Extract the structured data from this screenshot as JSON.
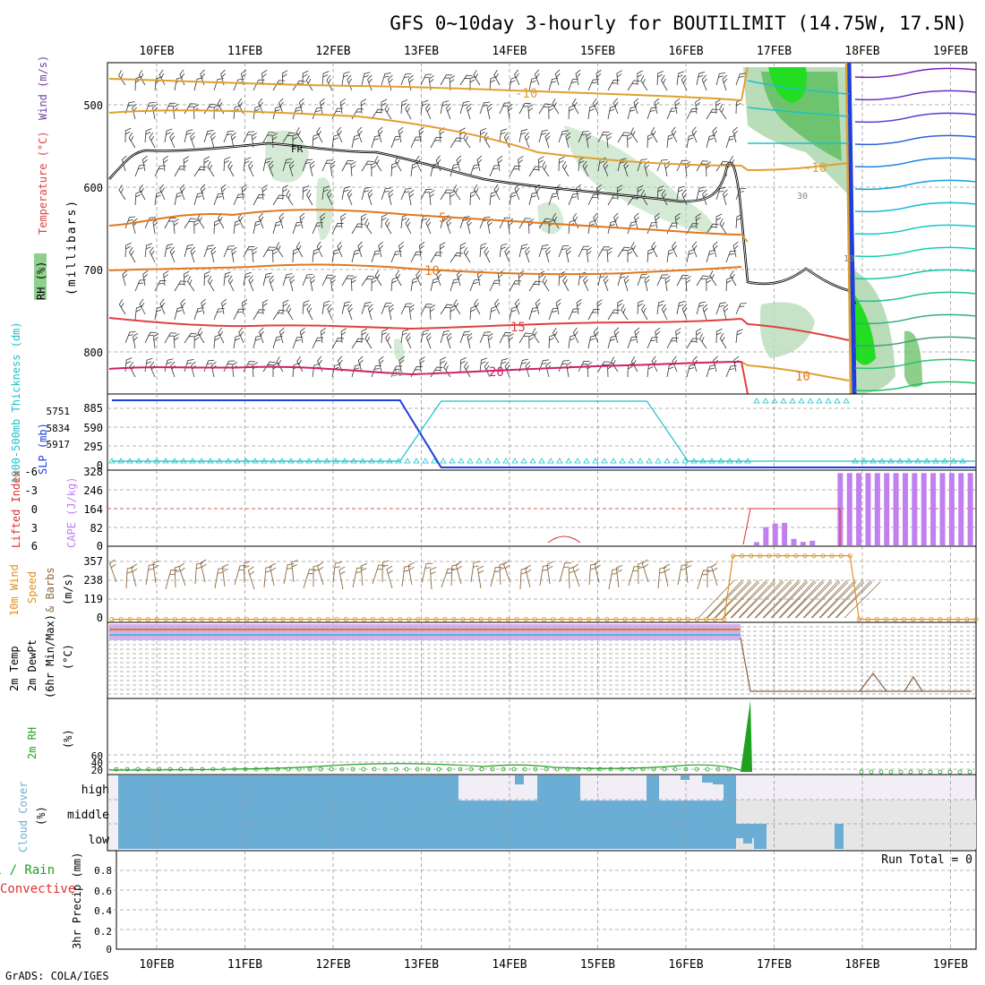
{
  "title": "GFS 0~10day 3-hourly for BOUTILIMIT (14.75W, 17.5N)",
  "footer": "GrADS: COLA/IGES",
  "colors": {
    "rh_fill": "#b9dcb9",
    "rh_fill_dark": "#6ec36e",
    "rh_fill_bright": "#22dd22",
    "freezing": "#000000",
    "t_minus10": "#e0a030",
    "t_plus5": "#e07820",
    "t_plus15": "#e04040",
    "t_plus20": "#d0206a",
    "slp": "#1e40d8",
    "thickness": "#20c0c8",
    "cape": "#c080f0",
    "lifted": "#e03030",
    "wind_speed": "#e09020",
    "barb": "#8a6a40",
    "temp_band": "#c8a0e8",
    "rh2m": "#20a020",
    "cloud": "#6aaed6",
    "cloud_bg": "#e8e8e8"
  },
  "axis_labels": {
    "upper_rh": "RH (%)",
    "upper_temp": "Temperature (°C)",
    "upper_wind": "Wind (m/s)",
    "upper_pressure": "(millibars)",
    "thickness": "1000-500mb Thickness (dm)",
    "slp": "SLP (mb)",
    "lifted": "Lifted Index",
    "cape": "CAPE (J/kg)",
    "wind10": "10m Wind",
    "wind_speed": "Speed",
    "wind_barbs": "& Barbs",
    "wind_units": "(m/s)",
    "temp_a": "2m Temp",
    "temp_b": "2m DewPt",
    "temp_c": "(6hr Min/Max)",
    "temp_units": "(°C)",
    "rh2m": "2m RH",
    "rh2m_units": "(%)",
    "cloud": "Cloud Cover",
    "cloud_units": "(%)",
    "precip_a": "Total / Rain",
    "precip_b": "Convective",
    "precip_c": "3hr Precip (mm)"
  },
  "run_total": "Run Total = 0",
  "chart_data": [
    {
      "type": "heatmap",
      "panel": "upper-air",
      "x": [
        "10FEB",
        "11FEB",
        "12FEB",
        "13FEB",
        "14FEB",
        "15FEB",
        "16FEB",
        "17FEB",
        "18FEB",
        "19FEB"
      ],
      "ylim": [
        850,
        450
      ],
      "yticks": [
        "500",
        "600",
        "700",
        "800"
      ],
      "contour_labels": [
        "FR",
        "-10",
        "5",
        "10",
        "15",
        "20",
        "30",
        "10",
        "30",
        "-10",
        "10"
      ]
    },
    {
      "type": "line",
      "panel": "thickness-slp",
      "yticks": [
        "885",
        "590",
        "295",
        "0"
      ],
      "thickness_ticks": [
        "5751",
        "5834",
        "5917"
      ],
      "series": [
        {
          "name": "SLP (mb)",
          "values": [
            1010,
            1010,
            1010,
            1010,
            1010,
            1010,
            1010,
            1010,
            0,
            0,
            0,
            0,
            0,
            0,
            0,
            0,
            0,
            0,
            0,
            0,
            0,
            0
          ]
        },
        {
          "name": "1000-500mb Thickness (dm)",
          "values": [
            5751,
            5751,
            5751,
            5751,
            5751,
            5751,
            5751,
            5751,
            5980,
            5980,
            5980,
            5980,
            5980,
            5980,
            5751,
            5751,
            5751,
            5751,
            5751,
            5751,
            5751,
            5751
          ]
        }
      ]
    },
    {
      "type": "bar",
      "panel": "cape",
      "yticks": [
        "328",
        "246",
        "164",
        "82",
        "0"
      ],
      "li_ticks": [
        "-6",
        "-3",
        "0",
        "3",
        "6"
      ],
      "ylim": [
        0,
        328
      ],
      "values": [
        0,
        0,
        0,
        0,
        0,
        0,
        0,
        0,
        0,
        0,
        0,
        0,
        0,
        0,
        0,
        0,
        0,
        0,
        0,
        0,
        0,
        0,
        0,
        0,
        0,
        0,
        0,
        0,
        0,
        0,
        0,
        0,
        0,
        0,
        0,
        0,
        0,
        0,
        0,
        0,
        0,
        0,
        0,
        0,
        0,
        0,
        0,
        0,
        0,
        0,
        0,
        0,
        0,
        0,
        0,
        0,
        0,
        0,
        0,
        0,
        0,
        0,
        0,
        0,
        0,
        0,
        0,
        0,
        0,
        14,
        80,
        95,
        98,
        28,
        15,
        20,
        0,
        0,
        315,
        315,
        315,
        315,
        315,
        315,
        315,
        315,
        315,
        315,
        315,
        315,
        315,
        315,
        315
      ]
    },
    {
      "type": "line",
      "panel": "wind10m",
      "yticks": [
        "357",
        "238",
        "119",
        "0"
      ],
      "ylim": [
        0,
        400
      ],
      "values": [
        2,
        2,
        2,
        2,
        2,
        2,
        2,
        2,
        2,
        2,
        2,
        2,
        2,
        2,
        2,
        2,
        2,
        2,
        2,
        2,
        2,
        2,
        2,
        2,
        2,
        2,
        2,
        2,
        2,
        2,
        2,
        2,
        2,
        2,
        2,
        2,
        2,
        2,
        2,
        2,
        2,
        2,
        2,
        2,
        2,
        2,
        2,
        2,
        2,
        2,
        2,
        2,
        2,
        2,
        2,
        2,
        2,
        2,
        2,
        2,
        2,
        2,
        2,
        2,
        2,
        2,
        2,
        2,
        2,
        357,
        357,
        357,
        357,
        357,
        357,
        357,
        357,
        357,
        357,
        357,
        357,
        357,
        357,
        2,
        2,
        2,
        2,
        2,
        2,
        2,
        2,
        2,
        2,
        2,
        2,
        2,
        2
      ]
    },
    {
      "type": "line",
      "panel": "temp2m",
      "yticks": []
    },
    {
      "type": "line",
      "panel": "rh2m",
      "yticks": [
        "60",
        "40",
        "20"
      ],
      "ylim": [
        0,
        200
      ]
    },
    {
      "type": "area",
      "panel": "cloud",
      "categories": [
        "high",
        "middle",
        "low"
      ]
    },
    {
      "type": "bar",
      "panel": "precip",
      "yticks": [
        "0.8",
        "0.6",
        "0.4",
        "0.2",
        "0"
      ],
      "ylim": [
        0,
        0.95
      ],
      "values": []
    }
  ]
}
